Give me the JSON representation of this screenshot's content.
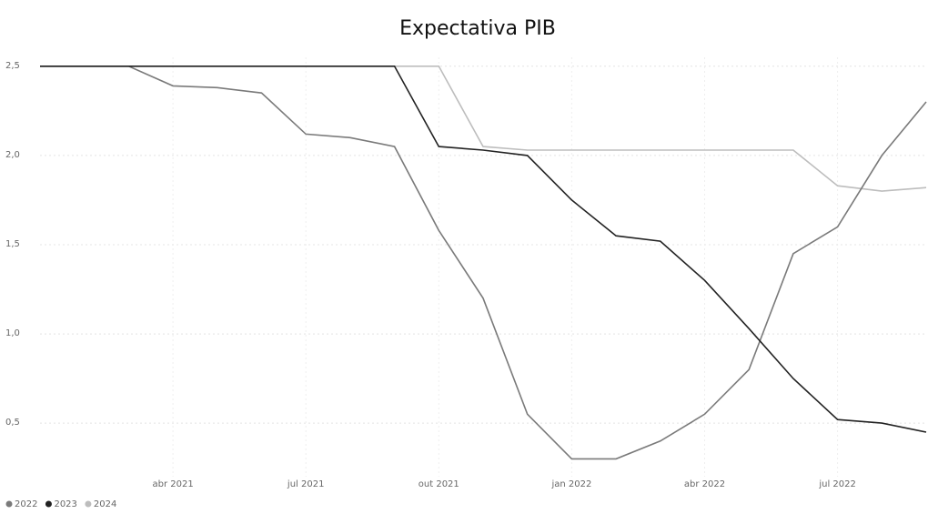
{
  "chart_data": {
    "type": "line",
    "title": "Expectativa PIB",
    "x": [
      "2021-01",
      "2021-02",
      "2021-03",
      "2021-04",
      "2021-05",
      "2021-06",
      "2021-07",
      "2021-08",
      "2021-09",
      "2021-10",
      "2021-11",
      "2021-12",
      "2022-01",
      "2022-02",
      "2022-03",
      "2022-04",
      "2022-05",
      "2022-06",
      "2022-07",
      "2022-08",
      "2022-09"
    ],
    "xlim": [
      "2021-01",
      "2022-09"
    ],
    "xticks": [
      {
        "value": "2021-04",
        "label": "abr 2021"
      },
      {
        "value": "2021-07",
        "label": "jul 2021"
      },
      {
        "value": "2021-10",
        "label": "out 2021"
      },
      {
        "value": "2022-01",
        "label": "jan 2022"
      },
      {
        "value": "2022-04",
        "label": "abr 2022"
      },
      {
        "value": "2022-07",
        "label": "jul 2022"
      }
    ],
    "ylim": [
      0.2,
      2.55
    ],
    "yticks": [
      {
        "value": 0.5,
        "label": "0,5"
      },
      {
        "value": 1.0,
        "label": "1,0"
      },
      {
        "value": 1.5,
        "label": "1,5"
      },
      {
        "value": 2.0,
        "label": "2,0"
      },
      {
        "value": 2.5,
        "label": "2,5"
      }
    ],
    "grid": true,
    "legend": "bottom-left",
    "series": [
      {
        "name": "2022",
        "color": "#7a7a7a",
        "values": [
          2.5,
          2.5,
          2.5,
          2.39,
          2.38,
          2.35,
          2.12,
          2.1,
          2.05,
          1.58,
          1.2,
          0.55,
          0.3,
          0.3,
          0.4,
          0.55,
          0.8,
          1.45,
          1.6,
          2.0,
          2.3
        ]
      },
      {
        "name": "2023",
        "color": "#222222",
        "values": [
          2.5,
          2.5,
          2.5,
          2.5,
          2.5,
          2.5,
          2.5,
          2.5,
          2.5,
          2.05,
          2.03,
          2.0,
          1.75,
          1.55,
          1.52,
          1.3,
          1.03,
          0.75,
          0.52,
          0.5,
          0.45
        ]
      },
      {
        "name": "2024",
        "color": "#bdbdbd",
        "values": [
          2.5,
          2.5,
          2.5,
          2.5,
          2.5,
          2.5,
          2.5,
          2.5,
          2.5,
          2.5,
          2.05,
          2.03,
          2.03,
          2.03,
          2.03,
          2.03,
          2.03,
          2.03,
          1.83,
          1.8,
          1.82
        ]
      }
    ]
  }
}
